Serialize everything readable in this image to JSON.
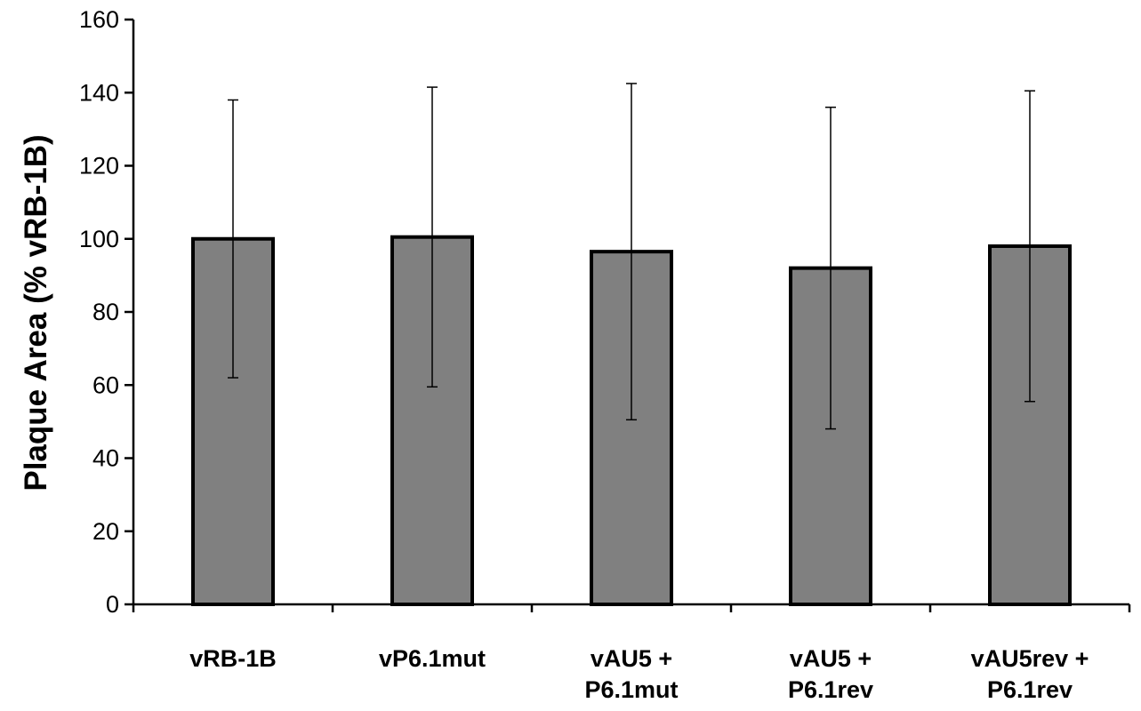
{
  "chart_data": {
    "type": "bar",
    "title": "",
    "xlabel": "",
    "ylabel": "Plaque Area (% vRB-1B)",
    "ylim": [
      0,
      160
    ],
    "yticks": [
      0,
      20,
      40,
      60,
      80,
      100,
      120,
      140,
      160
    ],
    "grid": false,
    "legend": "none",
    "bar_color": "#808080",
    "categories": [
      [
        "vRB-1B"
      ],
      [
        "vP6.1mut"
      ],
      [
        "vAU5 +",
        "P6.1mut"
      ],
      [
        "vAU5 +",
        "P6.1rev"
      ],
      [
        "vAU5rev +",
        "P6.1rev"
      ]
    ],
    "values": [
      100,
      100.5,
      96.5,
      92,
      98
    ],
    "error": [
      38,
      41,
      46,
      44,
      42.5
    ]
  }
}
